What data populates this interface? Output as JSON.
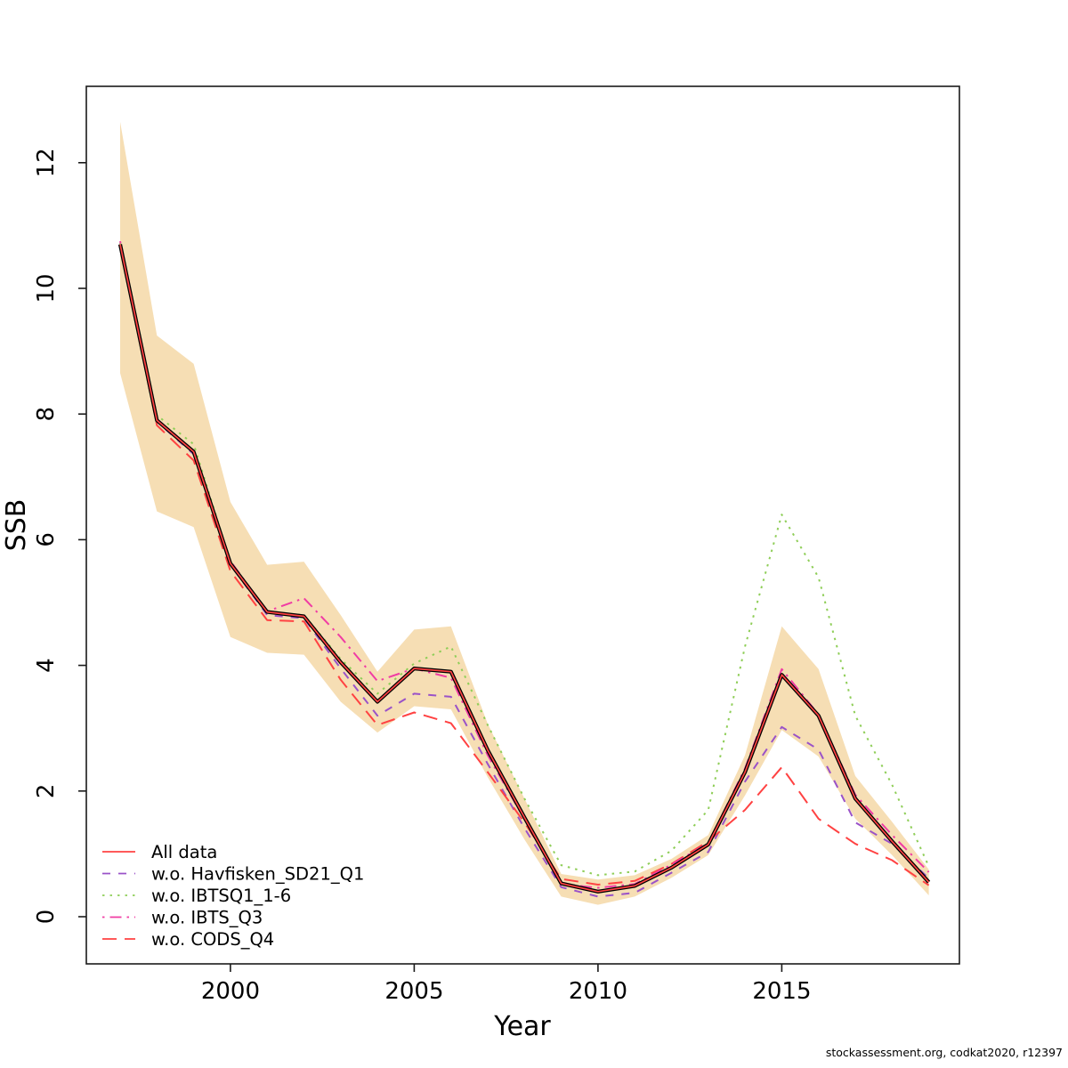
{
  "footer": "stockassessment.org, codkat2020, r12397",
  "chart_data": {
    "type": "line",
    "title": "",
    "xlabel": "Year",
    "ylabel": "SSB",
    "x": [
      1997,
      1998,
      1999,
      2000,
      2001,
      2002,
      2003,
      2004,
      2005,
      2006,
      2007,
      2008,
      2009,
      2010,
      2011,
      2012,
      2013,
      2014,
      2015,
      2016,
      2017,
      2018,
      2019
    ],
    "x_ticks": [
      2000,
      2005,
      2010,
      2015
    ],
    "y_ticks": [
      0,
      2,
      4,
      6,
      8,
      10,
      12
    ],
    "xlim": [
      1996.1,
      2019.85
    ],
    "ylim": [
      -0.75,
      13.2
    ],
    "grid": false,
    "legend_position": "bottom-left-inside",
    "band": {
      "name": "confidence-band",
      "color": "#f6deb4",
      "upper": [
        12.65,
        9.25,
        8.8,
        6.6,
        5.6,
        5.65,
        4.8,
        3.9,
        4.57,
        4.62,
        3.07,
        1.88,
        0.68,
        0.59,
        0.66,
        0.92,
        1.3,
        2.57,
        4.62,
        3.94,
        2.24,
        1.51,
        0.75
      ],
      "lower": [
        8.65,
        6.45,
        6.2,
        4.45,
        4.2,
        4.17,
        3.42,
        2.93,
        3.35,
        3.3,
        2.22,
        1.23,
        0.32,
        0.19,
        0.32,
        0.62,
        0.98,
        1.93,
        2.97,
        2.55,
        1.56,
        0.98,
        0.34
      ]
    },
    "series": [
      {
        "name": "w.o. IBTSQ1_1-6",
        "color": "#8fce58",
        "style": "dotted",
        "width": 2,
        "values": [
          10.72,
          7.98,
          7.52,
          5.65,
          4.85,
          4.8,
          4.1,
          3.55,
          4.03,
          4.3,
          3.05,
          1.88,
          0.82,
          0.66,
          0.72,
          1.05,
          1.7,
          4.3,
          6.4,
          5.4,
          3.2,
          2.1,
          0.8
        ]
      },
      {
        "name": "w.o. Havfisken_SD21_Q1",
        "color": "#9a52c8",
        "style": "dashed",
        "width": 2,
        "values": [
          10.7,
          7.88,
          7.36,
          5.6,
          4.8,
          4.75,
          3.95,
          3.2,
          3.55,
          3.5,
          2.43,
          1.41,
          0.47,
          0.32,
          0.38,
          0.7,
          1.03,
          2.15,
          3.02,
          2.66,
          1.5,
          1.16,
          0.61
        ]
      },
      {
        "name": "w.o. CODS_Q4",
        "color": "#ff4242",
        "style": "longdash",
        "width": 2,
        "values": [
          10.65,
          7.82,
          7.26,
          5.5,
          4.72,
          4.7,
          3.77,
          3.05,
          3.25,
          3.08,
          2.3,
          1.5,
          0.6,
          0.51,
          0.57,
          0.84,
          1.2,
          1.7,
          2.38,
          1.56,
          1.16,
          0.9,
          0.5
        ]
      },
      {
        "name": "w.o. IBTS_Q3",
        "color": "#f03ca4",
        "style": "dotdash",
        "width": 2,
        "values": [
          10.75,
          7.92,
          7.42,
          5.66,
          4.86,
          5.07,
          4.45,
          3.75,
          3.95,
          3.8,
          2.57,
          1.55,
          0.52,
          0.46,
          0.52,
          0.83,
          1.17,
          2.36,
          3.94,
          3.22,
          1.94,
          1.3,
          0.71
        ]
      },
      {
        "name": "base",
        "color": "#000000",
        "style": "solid",
        "width": 4.2,
        "in_legend": false,
        "values": [
          10.7,
          7.9,
          7.4,
          5.62,
          4.85,
          4.78,
          4.05,
          3.42,
          3.95,
          3.9,
          2.65,
          1.58,
          0.53,
          0.4,
          0.49,
          0.78,
          1.15,
          2.3,
          3.85,
          3.2,
          1.88,
          1.2,
          0.55
        ]
      },
      {
        "name": "All data",
        "color": "#ff4242",
        "style": "solid",
        "width": 1.7,
        "values": [
          10.7,
          7.9,
          7.4,
          5.62,
          4.85,
          4.78,
          4.05,
          3.42,
          3.95,
          3.9,
          2.65,
          1.58,
          0.53,
          0.4,
          0.49,
          0.78,
          1.15,
          2.3,
          3.85,
          3.2,
          1.88,
          1.2,
          0.55
        ]
      }
    ],
    "legend": {
      "items": [
        "All data",
        "w.o. Havfisken_SD21_Q1",
        "w.o. IBTSQ1_1-6",
        "w.o. IBTS_Q3",
        "w.o. CODS_Q4"
      ]
    }
  }
}
